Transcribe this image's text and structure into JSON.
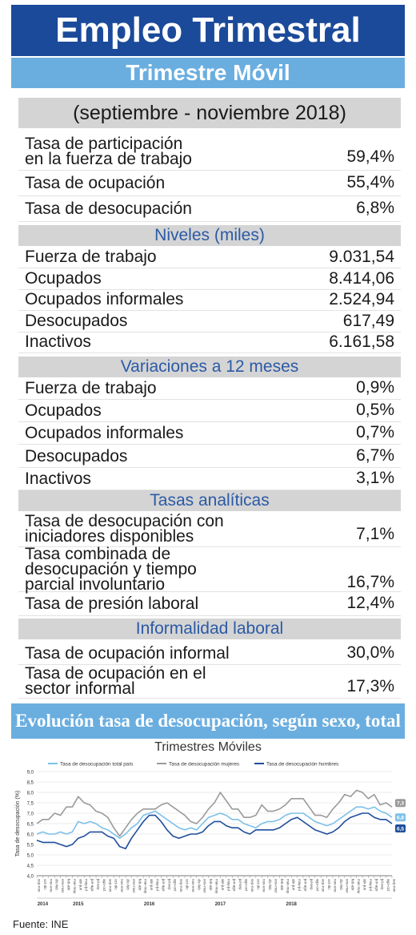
{
  "header": {
    "title": "Empleo Trimestral",
    "subtitle": "Trimestre Móvil",
    "period": "(septiembre - noviembre 2018)"
  },
  "tasas": [
    {
      "label": "Tasa de participación\nen la fuerza de trabajo",
      "value": "59,4%"
    },
    {
      "label": "Tasa de ocupación",
      "value": "55,4%"
    },
    {
      "label": "Tasa de desocupación",
      "value": "6,8%"
    }
  ],
  "niveles": {
    "title": "Niveles (miles)",
    "rows": [
      {
        "label": "Fuerza de trabajo",
        "value": "9.031,54"
      },
      {
        "label": "Ocupados",
        "value": "8.414,06"
      },
      {
        "label": "Ocupados informales",
        "value": "2.524,94"
      },
      {
        "label": "Desocupados",
        "value": "617,49"
      },
      {
        "label": "Inactivos",
        "value": "6.161,58"
      }
    ]
  },
  "variaciones": {
    "title": "Variaciones a 12 meses",
    "rows": [
      {
        "label": "Fuerza de trabajo",
        "value": "0,9%"
      },
      {
        "label": "Ocupados",
        "value": "0,5%"
      },
      {
        "label": "Ocupados informales",
        "value": "0,7%"
      },
      {
        "label": "Desocupados",
        "value": "6,7%"
      },
      {
        "label": "Inactivos",
        "value": "3,1%"
      }
    ]
  },
  "analiticas": {
    "title": "Tasas analíticas",
    "rows": [
      {
        "label": "Tasa de desocupación con\niniciadores disponibles",
        "value": "7,1%"
      },
      {
        "label": "Tasa combinada de\ndesocupación y tiempo\nparcial involuntario",
        "value": "16,7%"
      },
      {
        "label": "Tasa de presión laboral",
        "value": "12,4%"
      }
    ]
  },
  "informalidad": {
    "title": "Informalidad laboral",
    "rows": [
      {
        "label": "Tasa de ocupación informal",
        "value": "30,0%"
      },
      {
        "label": "Tasa de ocupación en el\nsector informal",
        "value": "17,3%"
      }
    ]
  },
  "chart_title": "Evolución tasa de desocupación, según sexo, total país",
  "chart_subtitle": "Trimestres Móviles",
  "source": "Fuente: INE",
  "colors": {
    "total": "#7cc0e8",
    "mujeres": "#9a9a9a",
    "hombres": "#1f4e9c"
  },
  "chart_data": {
    "type": "line",
    "ylabel": "Tasa de desocupación (%)",
    "ylim": [
      4.0,
      9.0
    ],
    "yticks": [
      "4,0",
      "4,5",
      "5,0",
      "5,5",
      "6,0",
      "6,5",
      "7,0",
      "7,5",
      "8,0",
      "8,5",
      "9,0"
    ],
    "x": [
      "sep-nov",
      "oct-dic",
      "nov-ene",
      "dic-feb",
      "ene-mar",
      "feb-abr",
      "mar-may",
      "abr-jun",
      "may-jul",
      "jun-ago",
      "jul-sep",
      "ago-oct",
      "sep-nov",
      "oct-dic",
      "nov-ene",
      "dic-feb",
      "ene-mar",
      "feb-abr",
      "mar-may",
      "abr-jun",
      "may-jul",
      "jun-ago",
      "jul-sep",
      "ago-oct",
      "sep-nov",
      "oct-dic",
      "nov-ene",
      "dic-feb",
      "ene-mar",
      "feb-abr",
      "mar-may",
      "abr-jun",
      "may-jul",
      "jun-ago",
      "jul-sep",
      "ago-oct",
      "sep-nov",
      "oct-dic",
      "nov-ene",
      "dic-feb",
      "ene-mar",
      "feb-abr",
      "mar-may",
      "abr-jun",
      "may-jul",
      "jun-ago",
      "jul-sep",
      "ago-oct",
      "sep-nov",
      "oct-dic",
      "nov-ene",
      "dic-feb",
      "ene-mar",
      "feb-abr",
      "mar-may",
      "abr-jun",
      "may-jul",
      "jun-ago",
      "jul-sep",
      "ago-oct",
      "sep-nov"
    ],
    "years": [
      {
        "label": "2014",
        "index": 1
      },
      {
        "label": "2015",
        "index": 7
      },
      {
        "label": "2016",
        "index": 19
      },
      {
        "label": "2017",
        "index": 31
      },
      {
        "label": "2018",
        "index": 43
      }
    ],
    "series": [
      {
        "name": "Tasa de desocupación total país",
        "values": [
          6.0,
          6.1,
          6.0,
          6.0,
          6.1,
          6.0,
          6.1,
          6.6,
          6.5,
          6.6,
          6.5,
          6.3,
          6.2,
          6.0,
          5.8,
          6.0,
          6.3,
          6.5,
          6.9,
          7.0,
          7.1,
          6.9,
          6.7,
          6.5,
          6.3,
          6.2,
          6.3,
          6.2,
          6.5,
          6.8,
          6.9,
          7.0,
          6.9,
          6.7,
          6.7,
          6.5,
          6.4,
          6.3,
          6.5,
          6.6,
          6.6,
          6.7,
          6.9,
          7.0,
          7.0,
          7.0,
          6.8,
          6.6,
          6.5,
          6.4,
          6.5,
          6.7,
          6.9,
          7.1,
          7.3,
          7.3,
          7.2,
          7.3,
          7.1,
          7.0,
          6.8
        ]
      },
      {
        "name": "Tasa de desocupación mujeres",
        "values": [
          6.5,
          6.7,
          6.7,
          7.0,
          6.9,
          7.3,
          7.3,
          7.8,
          7.5,
          7.4,
          7.1,
          7.0,
          6.8,
          6.3,
          5.9,
          6.3,
          6.7,
          7.0,
          7.2,
          7.2,
          7.2,
          7.4,
          7.5,
          7.3,
          7.1,
          6.9,
          6.6,
          6.5,
          6.8,
          7.2,
          7.5,
          8.0,
          7.6,
          7.2,
          7.2,
          6.8,
          6.8,
          6.9,
          7.4,
          7.1,
          7.1,
          7.2,
          7.4,
          7.7,
          7.7,
          7.7,
          7.3,
          6.9,
          6.9,
          6.8,
          7.2,
          7.5,
          7.9,
          7.8,
          8.1,
          8.0,
          7.7,
          7.9,
          7.4,
          7.5,
          7.3
        ]
      },
      {
        "name": "Tasa de desocupación hombres",
        "values": [
          5.7,
          5.6,
          5.6,
          5.6,
          5.5,
          5.4,
          5.5,
          5.8,
          5.9,
          6.1,
          6.1,
          6.1,
          5.9,
          5.8,
          5.4,
          5.3,
          5.8,
          6.2,
          6.6,
          6.9,
          6.9,
          6.6,
          6.2,
          5.9,
          5.8,
          5.9,
          6.0,
          6.0,
          6.1,
          6.4,
          6.6,
          6.6,
          6.4,
          6.3,
          6.3,
          6.1,
          6.0,
          6.2,
          6.2,
          6.2,
          6.2,
          6.3,
          6.5,
          6.7,
          6.8,
          6.6,
          6.4,
          6.2,
          6.1,
          6.0,
          6.1,
          6.3,
          6.6,
          6.8,
          6.9,
          7.0,
          7.0,
          6.8,
          6.7,
          6.7,
          6.5
        ]
      }
    ],
    "end_labels": [
      "7,3",
      "6,8",
      "6,5"
    ]
  }
}
